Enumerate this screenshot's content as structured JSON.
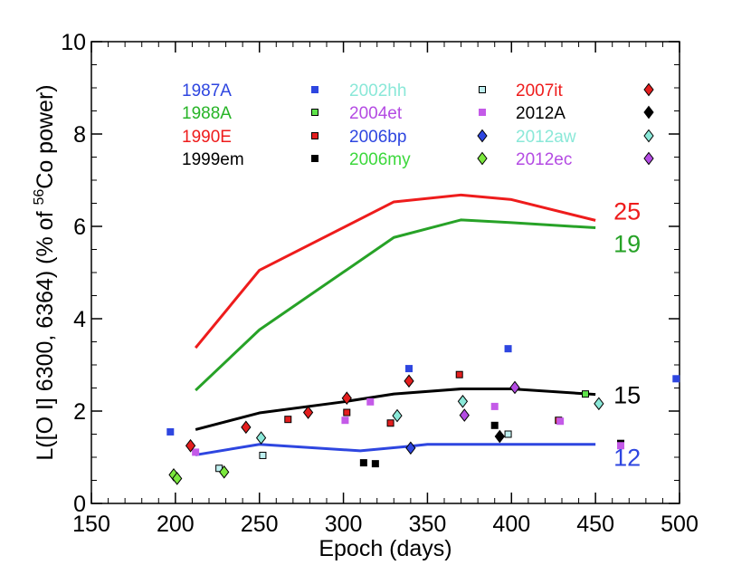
{
  "chart_data": {
    "type": "scatter",
    "title": "",
    "xlabel": "Epoch (days)",
    "ylabel_parts": {
      "main": "L([O I] 6300, 6364) (% of ",
      "sup": "56",
      "rest": "Co power)"
    },
    "xlim": [
      150,
      500
    ],
    "ylim": [
      0,
      10
    ],
    "xticks": [
      150,
      200,
      250,
      300,
      350,
      400,
      450,
      500
    ],
    "yticks": [
      0,
      2,
      4,
      6,
      8,
      10
    ],
    "xtick_labels": [
      "150",
      "200",
      "250",
      "300",
      "350",
      "400",
      "450",
      "500"
    ],
    "ytick_labels": [
      "0",
      "2",
      "4",
      "6",
      "8",
      "10"
    ],
    "grid": false,
    "model_lines": [
      {
        "label": "25",
        "color": "#ee1c1c",
        "x": [
          212,
          250,
          330,
          370,
          400,
          450
        ],
        "y": [
          3.37,
          5.05,
          6.53,
          6.68,
          6.58,
          6.13
        ]
      },
      {
        "label": "19",
        "color": "#27a227",
        "x": [
          212,
          250,
          330,
          370,
          400,
          450
        ],
        "y": [
          2.45,
          3.76,
          5.76,
          6.14,
          6.08,
          5.97
        ]
      },
      {
        "label": "15",
        "color": "#000000",
        "x": [
          212,
          250,
          300,
          330,
          370,
          400,
          450
        ],
        "y": [
          1.6,
          1.96,
          2.2,
          2.37,
          2.48,
          2.48,
          2.36
        ]
      },
      {
        "label": "12",
        "color": "#2e46e0",
        "x": [
          212,
          250,
          310,
          340,
          350,
          400,
          450
        ],
        "y": [
          1.05,
          1.28,
          1.14,
          1.24,
          1.28,
          1.28,
          1.28
        ]
      }
    ],
    "series": [
      {
        "name": "1987A",
        "marker": "square",
        "fill": "#2e46e0",
        "edge": "#2e46e0",
        "x": [
          197,
          339,
          398,
          498
        ],
        "y": [
          1.55,
          2.92,
          3.35,
          2.7
        ]
      },
      {
        "name": "1988A",
        "marker": "square",
        "fill": "#5ee34a",
        "edge": "#000000",
        "x": [
          444
        ],
        "y": [
          2.37
        ]
      },
      {
        "name": "1990E",
        "marker": "square",
        "fill": "#e31e1e",
        "edge": "#000000",
        "x": [
          267,
          302,
          328,
          369,
          428
        ],
        "y": [
          1.82,
          1.97,
          1.74,
          2.79,
          1.8
        ]
      },
      {
        "name": "1999em",
        "marker": "square",
        "fill": "#000000",
        "edge": "#000000",
        "x": [
          312,
          319,
          390,
          465
        ],
        "y": [
          0.88,
          0.86,
          1.69,
          1.3
        ]
      },
      {
        "name": "2002hh",
        "marker": "square",
        "fill": "#bff0f0",
        "edge": "#000000",
        "x": [
          226,
          252,
          398
        ],
        "y": [
          0.76,
          1.04,
          1.5
        ]
      },
      {
        "name": "2004et",
        "marker": "square",
        "fill": "#c45ae8",
        "edge": "#c45ae8",
        "x": [
          212,
          301,
          316,
          390,
          429,
          465
        ],
        "y": [
          1.11,
          1.8,
          2.2,
          2.1,
          1.78,
          1.25
        ]
      },
      {
        "name": "2006bp",
        "marker": "diamond",
        "fill": "#2e46e0",
        "edge": "#000000",
        "x": [
          340
        ],
        "y": [
          1.2
        ]
      },
      {
        "name": "2006my",
        "marker": "diamond",
        "fill": "#7be83d",
        "edge": "#000000",
        "x": [
          199,
          201,
          229
        ],
        "y": [
          0.62,
          0.54,
          0.68
        ]
      },
      {
        "name": "2007it",
        "marker": "diamond",
        "fill": "#e31e1e",
        "edge": "#000000",
        "x": [
          209,
          242,
          279,
          302,
          339
        ],
        "y": [
          1.25,
          1.65,
          1.97,
          2.28,
          2.65
        ]
      },
      {
        "name": "2012A",
        "marker": "diamond",
        "fill": "#000000",
        "edge": "#000000",
        "x": [
          393
        ],
        "y": [
          1.45
        ]
      },
      {
        "name": "2012aw",
        "marker": "diamond",
        "fill": "#8ae8d8",
        "edge": "#000000",
        "x": [
          251,
          332,
          371,
          452
        ],
        "y": [
          1.42,
          1.9,
          2.21,
          2.16
        ]
      },
      {
        "name": "2012ec",
        "marker": "diamond",
        "fill": "#b44be3",
        "edge": "#000000",
        "x": [
          372,
          402
        ],
        "y": [
          1.91,
          2.51
        ]
      }
    ],
    "legend": {
      "placement": "top-left",
      "entries": [
        {
          "name": "1987A",
          "color": "#2e46e0",
          "marker": "square",
          "fill": "#2e46e0",
          "edge": "#2e46e0"
        },
        {
          "name": "1988A",
          "color": "#27b427",
          "marker": "square",
          "fill": "#5ee34a",
          "edge": "#000000"
        },
        {
          "name": "1990E",
          "color": "#ee1c1c",
          "marker": "square",
          "fill": "#e31e1e",
          "edge": "#000000"
        },
        {
          "name": "1999em",
          "color": "#000000",
          "marker": "square",
          "fill": "#000000",
          "edge": "#000000"
        },
        {
          "name": "2002hh",
          "color": "#8ae8d8",
          "marker": "square",
          "fill": "#bff0f0",
          "edge": "#000000"
        },
        {
          "name": "2004et",
          "color": "#b44be3",
          "marker": "square",
          "fill": "#c45ae8",
          "edge": "#c45ae8"
        },
        {
          "name": "2006bp",
          "color": "#2e46e0",
          "marker": "diamond",
          "fill": "#2e46e0",
          "edge": "#000000"
        },
        {
          "name": "2006my",
          "color": "#3cd83c",
          "marker": "diamond",
          "fill": "#7be83d",
          "edge": "#000000"
        },
        {
          "name": "2007it",
          "color": "#ee1c1c",
          "marker": "diamond",
          "fill": "#e31e1e",
          "edge": "#000000"
        },
        {
          "name": "2012A",
          "color": "#000000",
          "marker": "diamond",
          "fill": "#000000",
          "edge": "#000000"
        },
        {
          "name": "2012aw",
          "color": "#8ae8d8",
          "marker": "diamond",
          "fill": "#8ae8d8",
          "edge": "#000000"
        },
        {
          "name": "2012ec",
          "color": "#b44be3",
          "marker": "diamond",
          "fill": "#b44be3",
          "edge": "#000000"
        }
      ]
    }
  }
}
